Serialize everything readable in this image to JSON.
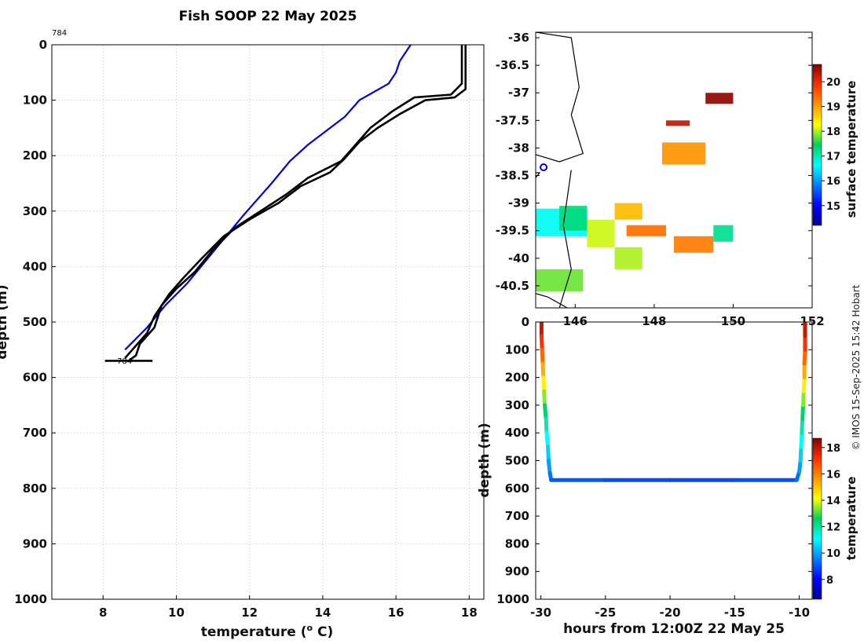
{
  "chart_data": [
    {
      "id": "profile",
      "type": "line",
      "title": "Fish SOOP 22 May 2025",
      "xlabel": "temperature (",
      "xlabel_sup": "o",
      "xlabel_tail": " C)",
      "ylabel": "depth (m)",
      "xlim": [
        6.6,
        18.4
      ],
      "ylim": [
        0,
        1000
      ],
      "xticks": [
        8,
        10,
        12,
        14,
        16,
        18
      ],
      "yticks": [
        0,
        100,
        200,
        300,
        400,
        500,
        600,
        700,
        800,
        900,
        1000
      ],
      "profile_label_top": "784",
      "profile_label_bottom": "784",
      "series": [
        {
          "name": "climatology",
          "color": "#0000dd",
          "points": [
            [
              16.4,
              0
            ],
            [
              16.1,
              30
            ],
            [
              16.0,
              50
            ],
            [
              15.8,
              70
            ],
            [
              15.0,
              100
            ],
            [
              14.6,
              130
            ],
            [
              14.0,
              160
            ],
            [
              13.6,
              180
            ],
            [
              13.1,
              210
            ],
            [
              12.6,
              250
            ],
            [
              12.2,
              280
            ],
            [
              11.8,
              310
            ],
            [
              11.3,
              350
            ],
            [
              10.8,
              390
            ],
            [
              10.3,
              430
            ],
            [
              9.7,
              470
            ],
            [
              9.2,
              510
            ],
            [
              8.6,
              550
            ]
          ]
        },
        {
          "name": "down cast",
          "color": "#000000",
          "points": [
            [
              17.8,
              0
            ],
            [
              17.8,
              70
            ],
            [
              17.5,
              90
            ],
            [
              16.5,
              95
            ],
            [
              15.9,
              120
            ],
            [
              15.3,
              150
            ],
            [
              14.9,
              180
            ],
            [
              14.5,
              210
            ],
            [
              13.6,
              240
            ],
            [
              13.0,
              270
            ],
            [
              12.3,
              300
            ],
            [
              11.6,
              330
            ],
            [
              11.0,
              370
            ],
            [
              10.5,
              410
            ],
            [
              10.0,
              440
            ],
            [
              9.6,
              470
            ],
            [
              9.4,
              510
            ],
            [
              9.0,
              540
            ],
            [
              8.9,
              560
            ],
            [
              8.7,
              570
            ]
          ]
        },
        {
          "name": "up cast",
          "color": "#000000",
          "points": [
            [
              17.9,
              0
            ],
            [
              17.9,
              80
            ],
            [
              17.6,
              95
            ],
            [
              16.8,
              100
            ],
            [
              16.1,
              125
            ],
            [
              15.5,
              150
            ],
            [
              15.0,
              175
            ],
            [
              14.6,
              205
            ],
            [
              14.2,
              230
            ],
            [
              13.4,
              255
            ],
            [
              12.8,
              285
            ],
            [
              12.0,
              315
            ],
            [
              11.3,
              345
            ],
            [
              10.7,
              385
            ],
            [
              10.2,
              420
            ],
            [
              9.8,
              450
            ],
            [
              9.4,
              490
            ],
            [
              9.2,
              520
            ],
            [
              8.8,
              550
            ],
            [
              8.6,
              565
            ]
          ]
        },
        {
          "name": "bottom marker",
          "color": "#000000",
          "points": [
            [
              8.05,
              570
            ],
            [
              9.35,
              570
            ]
          ]
        }
      ]
    },
    {
      "id": "map",
      "type": "heatmap",
      "colorbar_label": "surface temperature",
      "clim": [
        14.2,
        20.7
      ],
      "xticks": [
        146,
        148,
        150,
        152
      ],
      "yticks": [
        -36,
        -36.5,
        -37,
        -37.5,
        -38,
        -38.5,
        -39,
        -39.5,
        -40,
        -40.5
      ],
      "xlim": [
        145.0,
        152.0
      ],
      "ylim": [
        -40.9,
        -35.9
      ],
      "colorbar_ticks": [
        15,
        16,
        17,
        18,
        19,
        20
      ],
      "ship_position": [
        145.2,
        -38.35
      ],
      "sst_patches": [
        {
          "lon": [
            144.9,
            146.3
          ],
          "lat": [
            -39.6,
            -39.1
          ],
          "value": 16.7
        },
        {
          "lon": [
            145.6,
            146.3
          ],
          "lat": [
            -39.5,
            -39.05
          ],
          "value": 17.3
        },
        {
          "lon": [
            146.3,
            147.0
          ],
          "lat": [
            -39.8,
            -39.3
          ],
          "value": 18.1
        },
        {
          "lon": [
            147.3,
            148.3
          ],
          "lat": [
            -39.6,
            -39.4
          ],
          "value": 19.4
        },
        {
          "lon": [
            147.0,
            147.7
          ],
          "lat": [
            -40.2,
            -39.8
          ],
          "value": 18.0
        },
        {
          "lon": [
            147.0,
            147.7
          ],
          "lat": [
            -39.3,
            -39.0
          ],
          "value": 18.8
        },
        {
          "lon": [
            148.5,
            149.5
          ],
          "lat": [
            -39.9,
            -39.6
          ],
          "value": 19.3
        },
        {
          "lon": [
            149.5,
            150.0
          ],
          "lat": [
            -39.7,
            -39.4
          ],
          "value": 17.2
        },
        {
          "lon": [
            143.2,
            144.5
          ],
          "lat": [
            -40.4,
            -39.9
          ],
          "value": 16.4
        },
        {
          "lon": [
            144.2,
            144.8
          ],
          "lat": [
            -40.3,
            -40.0
          ],
          "value": 15.9
        },
        {
          "lon": [
            145.0,
            146.2
          ],
          "lat": [
            -40.6,
            -40.2
          ],
          "value": 17.8
        },
        {
          "lon": [
            140.6,
            141.0
          ],
          "lat": [
            -40.9,
            -40.3
          ],
          "value": 16.2
        },
        {
          "lon": [
            148.2,
            149.3
          ],
          "lat": [
            -38.3,
            -37.9
          ],
          "value": 19.1
        },
        {
          "lon": [
            148.3,
            148.9
          ],
          "lat": [
            -37.6,
            -37.5
          ],
          "value": 20.3
        },
        {
          "lon": [
            149.3,
            150.0
          ],
          "lat": [
            -37.2,
            -37.0
          ],
          "value": 20.6
        }
      ],
      "coastline": {
        "mainland": [
          [
            145.0,
            -35.9
          ],
          [
            145.9,
            -36.0
          ],
          [
            146.1,
            -36.9
          ],
          [
            145.9,
            -37.4
          ],
          [
            146.2,
            -38.1
          ],
          [
            145.6,
            -38.25
          ],
          [
            144.9,
            -38.1
          ],
          [
            144.7,
            -38.45
          ],
          [
            145.1,
            -38.45
          ],
          [
            144.7,
            -38.8
          ],
          [
            144.25,
            -38.9
          ],
          [
            144.05,
            -39.2
          ],
          [
            143.6,
            -38.8
          ],
          [
            142.6,
            -38.3
          ],
          [
            141.8,
            -38.0
          ],
          [
            141.0,
            -38.6
          ]
        ],
        "tasmania": [
          [
            144.6,
            -40.9
          ],
          [
            144.8,
            -40.6
          ],
          [
            145.3,
            -40.7
          ],
          [
            145.8,
            -40.9
          ]
        ],
        "king_island": [
          [
            143.85,
            -39.6
          ],
          [
            144.15,
            -39.8
          ],
          [
            144.0,
            -40.1
          ],
          [
            143.85,
            -39.85
          ],
          [
            143.85,
            -39.6
          ]
        ],
        "eastern_meridian": [
          [
            145.9,
            -38.4
          ],
          [
            145.7,
            -39.4
          ],
          [
            145.9,
            -40.2
          ],
          [
            145.6,
            -40.9
          ]
        ]
      }
    },
    {
      "id": "timeseries",
      "type": "scatter",
      "xlabel": "hours from 12:00Z 22 May 25",
      "ylabel": "depth (m)",
      "colorbar_label": "temperature",
      "xlim": [
        -30.4,
        -9.0
      ],
      "ylim": [
        0,
        1000
      ],
      "clim": [
        6.5,
        18.7
      ],
      "xticks": [
        -30,
        -25,
        -20,
        -15,
        -10
      ],
      "yticks": [
        0,
        100,
        200,
        300,
        400,
        500,
        600,
        700,
        800,
        900,
        1000
      ],
      "colorbar_ticks": [
        8,
        10,
        12,
        14,
        16,
        18
      ],
      "track": [
        [
          -29.95,
          0,
          18.2
        ],
        [
          -29.95,
          50,
          17.6
        ],
        [
          -29.9,
          100,
          16.8
        ],
        [
          -29.85,
          150,
          15.9
        ],
        [
          -29.8,
          200,
          14.8
        ],
        [
          -29.75,
          250,
          13.9
        ],
        [
          -29.7,
          300,
          12.9
        ],
        [
          -29.6,
          350,
          12.1
        ],
        [
          -29.55,
          400,
          11.4
        ],
        [
          -29.45,
          450,
          10.8
        ],
        [
          -29.4,
          500,
          10.2
        ],
        [
          -29.3,
          545,
          9.6
        ],
        [
          -29.2,
          570,
          9.2
        ],
        [
          -25,
          570,
          9.0
        ],
        [
          -20,
          570,
          8.9
        ],
        [
          -15,
          570,
          8.9
        ],
        [
          -10.2,
          570,
          9.1
        ],
        [
          -10.0,
          540,
          9.6
        ],
        [
          -9.9,
          500,
          10.2
        ],
        [
          -9.85,
          450,
          10.8
        ],
        [
          -9.8,
          400,
          11.5
        ],
        [
          -9.75,
          350,
          12.2
        ],
        [
          -9.7,
          300,
          12.9
        ],
        [
          -9.65,
          250,
          13.9
        ],
        [
          -9.6,
          200,
          14.8
        ],
        [
          -9.6,
          150,
          15.9
        ],
        [
          -9.55,
          100,
          16.8
        ],
        [
          -9.55,
          50,
          17.6
        ],
        [
          -9.55,
          0,
          18.2
        ]
      ]
    }
  ],
  "credit": "© IMOS 15-Sep-2025 15:42 Hobart"
}
